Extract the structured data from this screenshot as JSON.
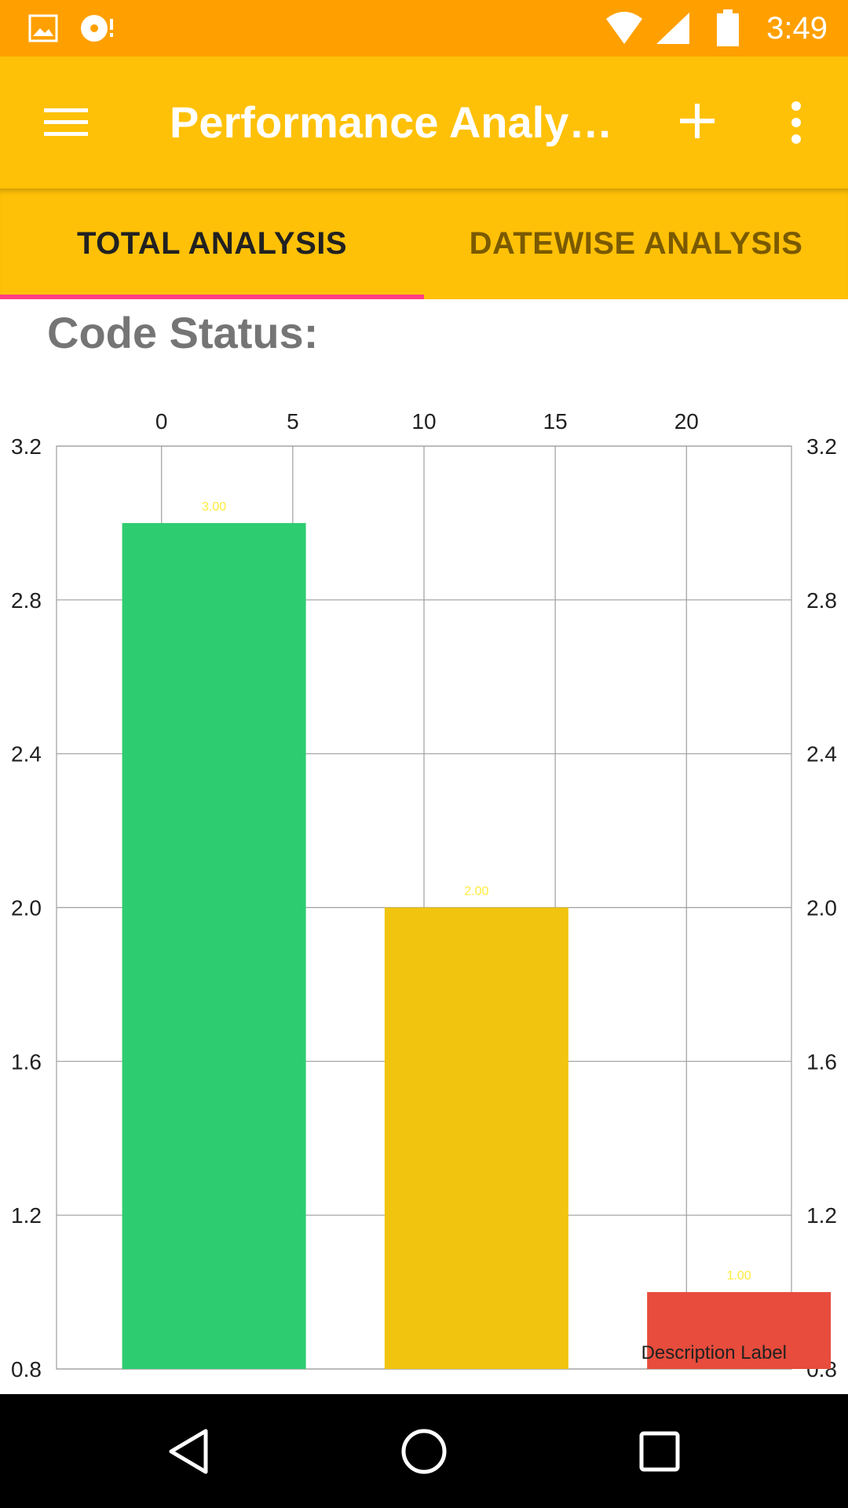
{
  "status_bar": {
    "time": "3:49",
    "icons": [
      "image-icon",
      "sync-disc-icon",
      "wifi-icon",
      "signal-icon",
      "battery-icon"
    ]
  },
  "app_bar": {
    "title": "Performance Analy…",
    "icons": [
      "menu-icon",
      "add-icon",
      "more-vert-icon"
    ]
  },
  "tabs": [
    {
      "label": "TOTAL ANALYSIS",
      "selected": true
    },
    {
      "label": "DATEWISE ANALYSIS",
      "selected": false
    }
  ],
  "section": {
    "title": "Code Status:"
  },
  "colors": {
    "status_bar": "#FFA000",
    "app_bar": "#FFC107",
    "tab_indicator": "#FF4081",
    "value_label": "#FFEB3B"
  },
  "chart_data": {
    "type": "bar",
    "description": "Description Label",
    "x": [
      2,
      12,
      22
    ],
    "values": [
      3.0,
      2.0,
      1.0
    ],
    "value_labels": [
      "3.00",
      "2.00",
      "1.00"
    ],
    "bar_colors": [
      "#2ECC71",
      "#F1C40F",
      "#E74C3C"
    ],
    "x_ticks": [
      "0",
      "5",
      "10",
      "15",
      "20"
    ],
    "y_ticks": [
      "0.8",
      "1.2",
      "1.6",
      "2.0",
      "2.4",
      "2.8",
      "3.2"
    ],
    "ylim": [
      0.8,
      3.2
    ],
    "xlim": [
      -4,
      24
    ],
    "x_axis_position": "top",
    "y_axis": "both",
    "grid": true
  },
  "nav_bar": {
    "buttons": [
      "back-icon",
      "home-icon",
      "recents-icon"
    ]
  }
}
